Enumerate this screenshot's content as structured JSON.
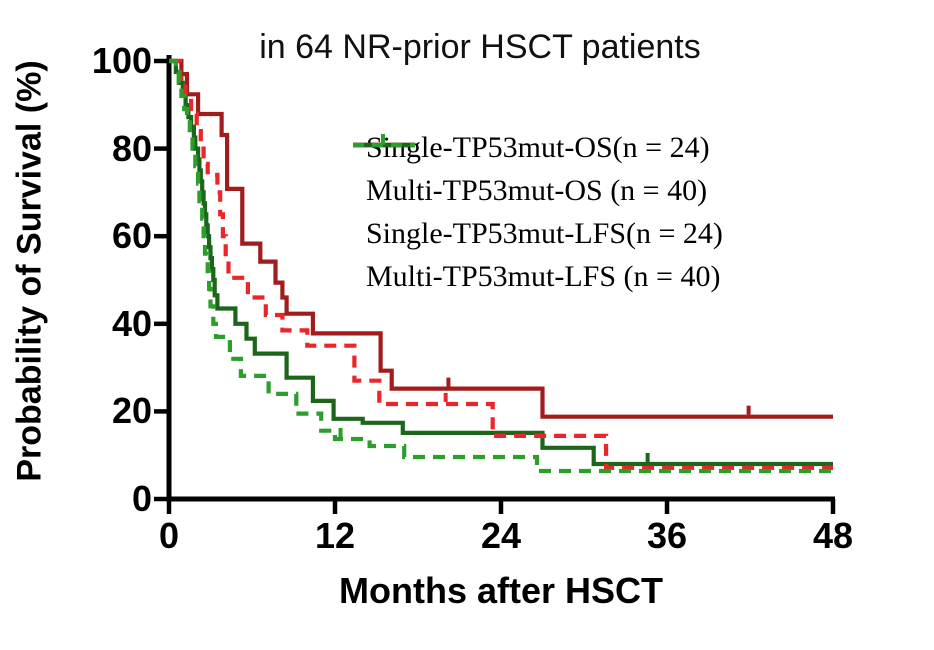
{
  "chart_data": {
    "type": "line",
    "subtype": "kaplan-meier-step-survival",
    "title": "in 64 NR-prior HSCT patients",
    "xlabel": "Months after HSCT",
    "ylabel": "Probability of Survival (%)",
    "xlim": [
      0,
      48
    ],
    "ylim": [
      0,
      100
    ],
    "x_ticks": [
      0,
      12,
      24,
      36,
      48
    ],
    "y_ticks": [
      0,
      20,
      40,
      60,
      80,
      100
    ],
    "grid": false,
    "legend_position": "upper-right-inside",
    "axis_color": "#000000",
    "background_color": "#ffffff",
    "series": [
      {
        "name": "single-os",
        "label": "Single-TP53mut-OS(n = 24)",
        "color": "#A11C1C",
        "dash": false,
        "n": 24,
        "points": [
          [
            0,
            100
          ],
          [
            0.9,
            97
          ],
          [
            1.3,
            92.4
          ],
          [
            2.1,
            87.9
          ],
          [
            3.8,
            83.1
          ],
          [
            4.2,
            70.8
          ],
          [
            5.3,
            58.3
          ],
          [
            6.6,
            54.2
          ],
          [
            7.7,
            49.4
          ],
          [
            8.2,
            46
          ],
          [
            8.5,
            42.3
          ],
          [
            10.4,
            37.8
          ],
          [
            15.3,
            29.3
          ],
          [
            16.1,
            25.2
          ],
          [
            27,
            18.8
          ],
          [
            48,
            18.8
          ]
        ],
        "censors": [
          [
            20.2,
            25.2
          ],
          [
            41.9,
            18.8
          ]
        ]
      },
      {
        "name": "multi-os",
        "label": "Multi-TP53mut-OS (n = 40)",
        "color": "#1C661C",
        "dash": false,
        "n": 40,
        "points": [
          [
            0,
            100
          ],
          [
            0.5,
            97.5
          ],
          [
            0.8,
            95
          ],
          [
            1.0,
            92.2
          ],
          [
            1.2,
            89.9
          ],
          [
            1.4,
            87.2
          ],
          [
            1.6,
            85
          ],
          [
            1.8,
            82.5
          ],
          [
            1.9,
            80
          ],
          [
            2.1,
            77.5
          ],
          [
            2.2,
            75
          ],
          [
            2.3,
            72.5
          ],
          [
            2.4,
            70
          ],
          [
            2.5,
            67.5
          ],
          [
            2.6,
            65
          ],
          [
            2.7,
            62.5
          ],
          [
            2.8,
            60
          ],
          [
            2.9,
            57.5
          ],
          [
            3.0,
            55
          ],
          [
            3.1,
            52.5
          ],
          [
            3.2,
            50
          ],
          [
            3.3,
            46.5
          ],
          [
            3.5,
            43.5
          ],
          [
            4.8,
            40
          ],
          [
            5.6,
            36.6
          ],
          [
            6.2,
            33.2
          ],
          [
            8.5,
            27.7
          ],
          [
            10.4,
            22.4
          ],
          [
            11.9,
            18.3
          ],
          [
            14.0,
            17.4
          ],
          [
            16.9,
            15.1
          ],
          [
            27,
            11.7
          ],
          [
            30.7,
            8
          ],
          [
            48,
            8
          ]
        ],
        "censors": [
          [
            34.6,
            8
          ]
        ]
      },
      {
        "name": "single-lfs",
        "label": "Single-TP53mut-LFS(n = 24)",
        "color": "#EB2528",
        "dash": true,
        "n": 24,
        "points": [
          [
            0,
            100
          ],
          [
            0.8,
            96
          ],
          [
            1.2,
            92
          ],
          [
            1.6,
            88
          ],
          [
            2.0,
            84
          ],
          [
            2.3,
            80
          ],
          [
            2.5,
            76.5
          ],
          [
            2.8,
            74
          ],
          [
            3.5,
            70
          ],
          [
            3.7,
            65
          ],
          [
            3.9,
            60
          ],
          [
            4.1,
            55
          ],
          [
            4.3,
            50.5
          ],
          [
            5.7,
            46
          ],
          [
            7.0,
            42
          ],
          [
            8.2,
            38.5
          ],
          [
            10.0,
            35
          ],
          [
            13.4,
            27
          ],
          [
            15.2,
            21.7
          ],
          [
            23.4,
            14.4
          ],
          [
            31.6,
            7.1
          ],
          [
            48,
            7.1
          ]
        ],
        "censors": [
          [
            20.0,
            21.7
          ]
        ]
      },
      {
        "name": "multi-lfs",
        "label": "Multi-TP53mut-LFS (n = 40)",
        "color": "#2C9E2C",
        "dash": true,
        "n": 40,
        "points": [
          [
            0,
            100
          ],
          [
            0.5,
            97.5
          ],
          [
            0.7,
            95
          ],
          [
            0.9,
            92
          ],
          [
            1.1,
            89
          ],
          [
            1.3,
            86
          ],
          [
            1.5,
            83
          ],
          [
            1.7,
            80
          ],
          [
            1.9,
            76
          ],
          [
            2.1,
            72
          ],
          [
            2.2,
            68
          ],
          [
            2.4,
            64
          ],
          [
            2.5,
            60
          ],
          [
            2.6,
            56
          ],
          [
            2.8,
            52
          ],
          [
            2.9,
            48
          ],
          [
            3.0,
            44
          ],
          [
            3.2,
            40
          ],
          [
            3.4,
            37
          ],
          [
            4.4,
            32
          ],
          [
            5.2,
            28.1
          ],
          [
            7.2,
            24
          ],
          [
            9.2,
            19.5
          ],
          [
            11.0,
            15.6
          ],
          [
            12.0,
            13.7
          ],
          [
            14.5,
            12.1
          ],
          [
            17,
            9.6
          ],
          [
            26.6,
            6.4
          ],
          [
            48,
            6.4
          ]
        ],
        "censors": [
          [
            12.4,
            13.7
          ]
        ]
      }
    ]
  }
}
